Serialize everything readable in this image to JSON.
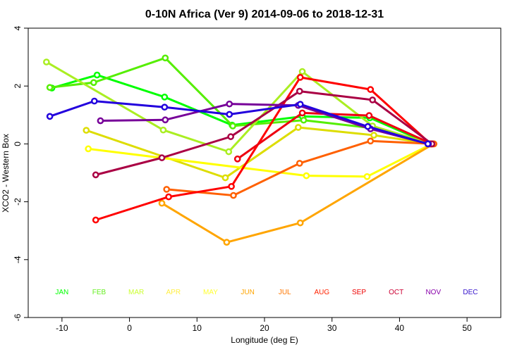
{
  "chart_data": {
    "type": "line",
    "title": "0-10N Africa (Ver 9)   2014-09-06 to 2018-12-31",
    "xlabel": "Longitude (deg E)",
    "ylabel": "XCO2 - Western Box",
    "xlim": [
      -15,
      55
    ],
    "ylim": [
      -6,
      4
    ],
    "xticks": [
      -10,
      0,
      10,
      20,
      30,
      40,
      50
    ],
    "yticks": [
      -6,
      -4,
      -2,
      0,
      2,
      4
    ],
    "grid": false,
    "series": [
      {
        "name": "JAN",
        "color": "#00FF00",
        "points": [
          [
            -11.5,
            1.93
          ],
          [
            -4.8,
            2.38
          ],
          [
            5.2,
            1.62
          ],
          [
            15.2,
            0.65
          ],
          [
            25.6,
            0.95
          ],
          [
            35.6,
            0.9
          ],
          [
            44.5,
            0.0
          ]
        ]
      },
      {
        "name": "FEB",
        "color": "#55EE00",
        "points": [
          [
            -11.8,
            1.95
          ],
          [
            -5.3,
            2.12
          ],
          [
            5.3,
            2.97
          ],
          [
            15.3,
            0.62
          ],
          [
            25.8,
            0.82
          ],
          [
            35.8,
            0.55
          ],
          [
            44.6,
            0.0
          ]
        ]
      },
      {
        "name": "MAR",
        "color": "#AAEE22",
        "points": [
          [
            -12.3,
            2.83
          ],
          [
            5.0,
            0.48
          ],
          [
            14.7,
            -0.27
          ],
          [
            25.6,
            2.5
          ],
          [
            36.0,
            0.62
          ],
          [
            44.7,
            0.0
          ]
        ]
      },
      {
        "name": "APR",
        "color": "#DDDD00",
        "points": [
          [
            -6.4,
            0.47
          ],
          [
            14.2,
            -1.17
          ],
          [
            25.0,
            0.57
          ],
          [
            36.2,
            0.3
          ],
          [
            44.7,
            0.0
          ]
        ]
      },
      {
        "name": "MAY",
        "color": "#FFFF00",
        "points": [
          [
            -6.1,
            -0.17
          ],
          [
            26.2,
            -1.1
          ],
          [
            35.2,
            -1.13
          ],
          [
            44.8,
            0.0
          ]
        ]
      },
      {
        "name": "JUN",
        "color": "#FFA500",
        "points": [
          [
            4.8,
            -2.05
          ],
          [
            14.4,
            -3.4
          ],
          [
            25.3,
            -2.73
          ],
          [
            45.0,
            0.0
          ]
        ]
      },
      {
        "name": "JUL",
        "color": "#FF6000",
        "points": [
          [
            5.5,
            -1.57
          ],
          [
            15.4,
            -1.78
          ],
          [
            25.2,
            -0.67
          ],
          [
            35.7,
            0.1
          ],
          [
            45.1,
            0.0
          ]
        ]
      },
      {
        "name": "AUG",
        "color": "#FF0000",
        "points": [
          [
            -5.0,
            -2.63
          ],
          [
            5.8,
            -1.83
          ],
          [
            15.1,
            -1.47
          ],
          [
            25.3,
            2.3
          ],
          [
            35.7,
            1.88
          ],
          [
            44.6,
            0.0
          ]
        ]
      },
      {
        "name": "SEP",
        "color": "#EE0010",
        "points": [
          [
            16.0,
            -0.52
          ],
          [
            25.6,
            1.07
          ],
          [
            35.5,
            0.98
          ],
          [
            44.8,
            0.0
          ]
        ]
      },
      {
        "name": "OCT",
        "color": "#AA0044",
        "points": [
          [
            -5.0,
            -1.07
          ],
          [
            4.8,
            -0.48
          ],
          [
            15.0,
            0.25
          ],
          [
            25.2,
            1.82
          ],
          [
            36.0,
            1.52
          ],
          [
            44.8,
            0.0
          ]
        ]
      },
      {
        "name": "NOV",
        "color": "#770099",
        "points": [
          [
            -4.3,
            0.8
          ],
          [
            5.3,
            0.83
          ],
          [
            14.8,
            1.38
          ],
          [
            25.0,
            1.33
          ],
          [
            35.7,
            0.52
          ],
          [
            44.3,
            0.0
          ]
        ]
      },
      {
        "name": "DEC",
        "color": "#2200DD",
        "points": [
          [
            -11.8,
            0.95
          ],
          [
            -5.2,
            1.48
          ],
          [
            5.2,
            1.27
          ],
          [
            14.8,
            1.02
          ],
          [
            25.3,
            1.37
          ],
          [
            35.3,
            0.6
          ],
          [
            44.2,
            0.0
          ]
        ]
      }
    ],
    "month_labels": [
      {
        "text": "JAN",
        "color": "#00FF00",
        "x": -10,
        "y": -5.1
      },
      {
        "text": "FEB",
        "color": "#66EE22",
        "x": -4.5,
        "y": -5.1
      },
      {
        "text": "MAR",
        "color": "#CCFF33",
        "x": 1,
        "y": -5.1
      },
      {
        "text": "APR",
        "color": "#FFEE44",
        "x": 6.5,
        "y": -5.1
      },
      {
        "text": "MAY",
        "color": "#FFFF33",
        "x": 12,
        "y": -5.1
      },
      {
        "text": "JUN",
        "color": "#FFA500",
        "x": 17.5,
        "y": -5.1
      },
      {
        "text": "JUL",
        "color": "#FF7700",
        "x": 23,
        "y": -5.1
      },
      {
        "text": "AUG",
        "color": "#FF2200",
        "x": 28.5,
        "y": -5.1
      },
      {
        "text": "SEP",
        "color": "#EE0000",
        "x": 34,
        "y": -5.1
      },
      {
        "text": "OCT",
        "color": "#CC0033",
        "x": 39.5,
        "y": -5.1
      },
      {
        "text": "NOV",
        "color": "#8800AA",
        "x": 45,
        "y": -5.1
      },
      {
        "text": "DEC",
        "color": "#3311CC",
        "x": 50.5,
        "y": -5.1
      }
    ]
  }
}
